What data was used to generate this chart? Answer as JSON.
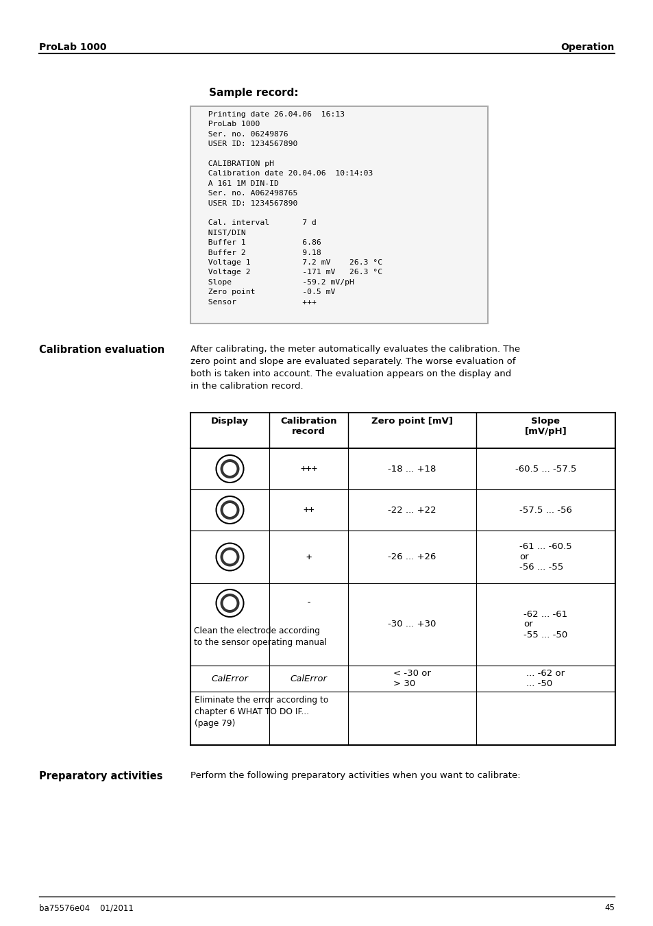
{
  "page_title_left": "ProLab 1000",
  "page_title_right": "Operation",
  "page_number": "45",
  "page_footer_left": "ba75576e04    01/2011",
  "sample_record_title": "Sample record:",
  "sample_record_lines": [
    "  Printing date 26.04.06  16:13",
    "  ProLab 1000",
    "  Ser. no. 06249876",
    "  USER ID: 1234567890",
    "",
    "  CALIBRATION pH",
    "  Calibration date 20.04.06  10:14:03",
    "  A 161 1M DIN-ID",
    "  Ser. no. A062498765",
    "  USER ID: 1234567890",
    "",
    "  Cal. interval       7 d",
    "  NIST/DIN",
    "  Buffer 1            6.86",
    "  Buffer 2            9.18",
    "  Voltage 1           7.2 mV    26.3 °C",
    "  Voltage 2           -171 mV   26.3 °C",
    "  Slope               -59.2 mV/pH",
    "  Zero point          -0.5 mV",
    "  Sensor              +++"
  ],
  "cal_eval_title": "Calibration evaluation",
  "cal_eval_text": "After calibrating, the meter automatically evaluates the calibration. The\nzero point and slope are evaluated separately. The worse evaluation of\nboth is taken into account. The evaluation appears on the display and\nin the calibration record.",
  "table_headers": [
    "Display",
    "Calibration\nrecord",
    "Zero point [mV]",
    "Slope\n[mV/pH]"
  ],
  "table_rows": [
    {
      "cal_record": "+++",
      "zero_point": "-18 ... +18",
      "slope": "-60.5 ... -57.5",
      "symbol_level": 3
    },
    {
      "cal_record": "++",
      "zero_point": "-22 ... +22",
      "slope": "-57.5 ... -56",
      "symbol_level": 2
    },
    {
      "cal_record": "+",
      "zero_point": "-26 ... +26",
      "slope": "-61 ... -60.5\nor\n-56 ... -55",
      "symbol_level": 1
    },
    {
      "cal_record": "-",
      "zero_point": "-30 ... +30",
      "slope": "-62 ... -61\nor\n-55 ... -50",
      "symbol_level": 0
    }
  ],
  "cal_error_row": {
    "col1": "CalError",
    "col2": "CalError",
    "col3": "< -30 or\n> 30",
    "col4": "... -62 or\n... -50"
  },
  "cal_error_text": "Eliminate the error according to\nchapter 6 WĦAT TO DO IF...\n(page 79)",
  "cal_error_text2": "Eliminate the error according to\nchapter 6 WHAT TO DO IF...\n(page 79)",
  "clean_electrode_text": "Clean the electrode according\nto the sensor operating manual",
  "prep_title": "Preparatory activities",
  "prep_text": "Perform the following preparatory activities when you want to calibrate:",
  "bg_color": "#ffffff",
  "text_color": "#000000",
  "header_line_color": "#000000",
  "box_border_color": "#aaaaaa",
  "table_line_color": "#000000"
}
